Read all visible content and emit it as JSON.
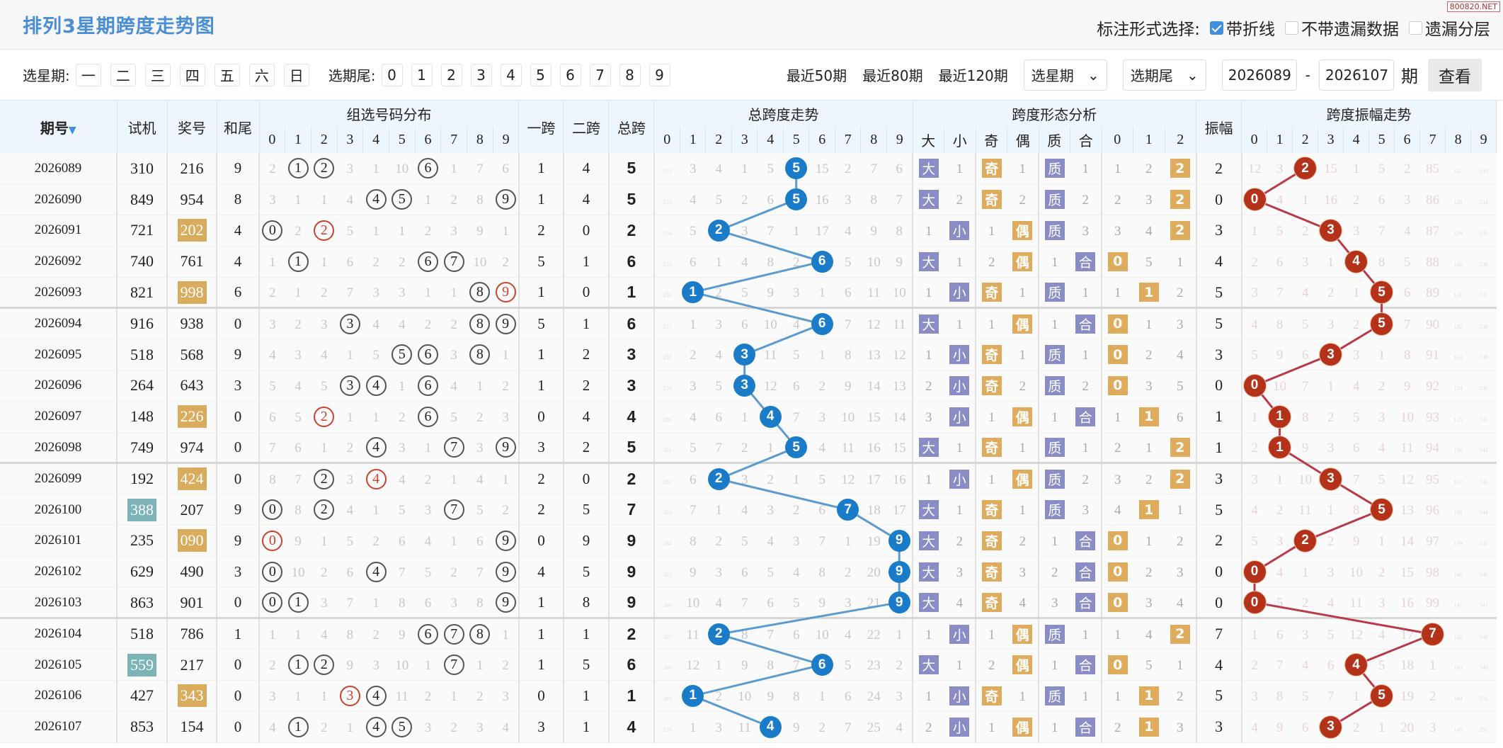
{
  "title": "排列3星期跨度走势图",
  "watermark": "800820.NET",
  "marks": {
    "label": "标注形式选择:",
    "options": [
      {
        "label": "带折线",
        "checked": true
      },
      {
        "label": "不带遗漏数据",
        "checked": false
      },
      {
        "label": "遗漏分层",
        "checked": false
      }
    ]
  },
  "filter": {
    "week_label": "选星期:",
    "weekdays": [
      "一",
      "二",
      "三",
      "四",
      "五",
      "六",
      "日"
    ],
    "tail_label": "选期尾:",
    "tails": [
      "0",
      "1",
      "2",
      "3",
      "4",
      "5",
      "6",
      "7",
      "8",
      "9"
    ],
    "recent": [
      "最近50期",
      "最近80期",
      "最近120期"
    ],
    "week_select": "选星期",
    "tail_select": "选期尾",
    "from": "2026089",
    "dash": "-",
    "to": "2026107",
    "unit": "期",
    "view": "查看"
  },
  "header": {
    "issue": "期号",
    "test": "试机",
    "prize": "奖号",
    "sum_tail": "和尾",
    "dist": "组选号码分布",
    "span1": "一跨",
    "span2": "二跨",
    "total": "总跨",
    "span_trend": "总跨度走势",
    "form": "跨度形态分析",
    "amp": "振幅",
    "amp_trend": "跨度振幅走势",
    "digits": [
      "0",
      "1",
      "2",
      "3",
      "4",
      "5",
      "6",
      "7",
      "8",
      "9"
    ],
    "form_cols": [
      "大",
      "小",
      "奇",
      "偶",
      "质",
      "合",
      "0",
      "1",
      "2"
    ]
  },
  "colors": {
    "span_ball": "#1a7cc8",
    "amp_ball": "#b4311a",
    "group3": "#d9ab5d",
    "test_hl": "#7bb3b6",
    "tag_purple": "#8a8cc6",
    "tag_orange": "#dfab5c"
  },
  "rows": [
    {
      "issue": "2026089",
      "test": "310",
      "prize": "216",
      "sum_tail": "9",
      "dist": [
        2,
        1,
        2,
        3,
        1,
        10,
        6,
        1,
        7,
        6
      ],
      "hits": [
        1,
        2,
        6
      ],
      "span1": 1,
      "span2": 4,
      "total": 5,
      "trend": [
        252,
        3,
        4,
        1,
        5,
        5,
        15,
        2,
        7,
        6
      ],
      "form": [
        "大",
        "1",
        "奇",
        "1",
        "质",
        "1",
        "1",
        "2",
        "2"
      ],
      "form_hl": [
        0,
        2,
        4,
        8
      ],
      "amp": 2,
      "amp_trend": [
        12,
        3,
        2,
        15,
        1,
        5,
        2,
        85,
        127,
        533
      ]
    },
    {
      "issue": "2026090",
      "test": "849",
      "prize": "954",
      "sum_tail": "8",
      "dist": [
        3,
        1,
        1,
        4,
        4,
        5,
        1,
        2,
        8,
        9
      ],
      "hits": [
        4,
        5,
        9
      ],
      "span1": 1,
      "span2": 4,
      "total": 5,
      "trend": [
        253,
        4,
        5,
        2,
        6,
        5,
        16,
        3,
        8,
        7
      ],
      "form": [
        "大",
        "2",
        "奇",
        "2",
        "质",
        "2",
        "2",
        "3",
        "2"
      ],
      "form_hl": [
        0,
        2,
        4,
        8
      ],
      "amp": 0,
      "amp_trend": [
        0,
        4,
        1,
        16,
        2,
        6,
        3,
        86,
        128,
        534
      ]
    },
    {
      "issue": "2026091",
      "test": "721",
      "prize": "202",
      "prize_hl": true,
      "sum_tail": "4",
      "dist": [
        0,
        2,
        2,
        5,
        1,
        1,
        2,
        3,
        9,
        1
      ],
      "hits": [
        0,
        2
      ],
      "double": 2,
      "span1": 2,
      "span2": 0,
      "total": 2,
      "trend": [
        254,
        5,
        2,
        3,
        7,
        1,
        17,
        4,
        9,
        8
      ],
      "form": [
        "1",
        "小",
        "1",
        "偶",
        "质",
        "3",
        "3",
        "4",
        "2"
      ],
      "form_hl": [
        1,
        3,
        4,
        8
      ],
      "amp": 3,
      "amp_trend": [
        1,
        5,
        2,
        3,
        3,
        7,
        4,
        87,
        129,
        535
      ]
    },
    {
      "issue": "2026092",
      "test": "740",
      "prize": "761",
      "sum_tail": "4",
      "dist": [
        1,
        1,
        1,
        6,
        2,
        2,
        6,
        7,
        10,
        2
      ],
      "hits": [
        1,
        6,
        7
      ],
      "span1": 5,
      "span2": 1,
      "total": 6,
      "trend": [
        255,
        6,
        1,
        4,
        8,
        2,
        6,
        5,
        10,
        9
      ],
      "form": [
        "大",
        "1",
        "2",
        "偶",
        "1",
        "合",
        "0",
        "5",
        "1"
      ],
      "form_hl": [
        0,
        3,
        5,
        6
      ],
      "amp": 4,
      "amp_trend": [
        2,
        6,
        3,
        1,
        4,
        8,
        5,
        88,
        130,
        536
      ]
    },
    {
      "issue": "2026093",
      "test": "821",
      "prize": "998",
      "prize_hl": true,
      "sum_tail": "6",
      "dist": [
        2,
        1,
        2,
        7,
        3,
        3,
        1,
        1,
        8,
        9
      ],
      "hits": [
        8,
        9
      ],
      "double": 9,
      "span1": 1,
      "span2": 0,
      "total": 1,
      "trend": [
        256,
        1,
        2,
        5,
        9,
        3,
        1,
        6,
        11,
        10
      ],
      "form": [
        "1",
        "小",
        "奇",
        "1",
        "质",
        "1",
        "1",
        "1",
        "2"
      ],
      "form_hl": [
        1,
        2,
        4,
        7
      ],
      "amp": 5,
      "amp_trend": [
        3,
        7,
        4,
        2,
        1,
        5,
        6,
        89,
        131,
        537
      ]
    },
    {
      "issue": "2026094",
      "test": "916",
      "prize": "938",
      "sum_tail": "0",
      "dist": [
        3,
        2,
        3,
        3,
        4,
        4,
        2,
        2,
        8,
        9
      ],
      "hits": [
        3,
        8,
        9
      ],
      "span1": 5,
      "span2": 1,
      "total": 6,
      "trend": [
        257,
        1,
        3,
        6,
        10,
        4,
        6,
        7,
        12,
        11
      ],
      "form": [
        "大",
        "1",
        "1",
        "偶",
        "1",
        "合",
        "0",
        "1",
        "3"
      ],
      "form_hl": [
        0,
        3,
        5,
        6
      ],
      "amp": 5,
      "amp_trend": [
        4,
        8,
        5,
        3,
        2,
        5,
        7,
        90,
        132,
        538
      ]
    },
    {
      "issue": "2026095",
      "test": "518",
      "prize": "568",
      "sum_tail": "9",
      "dist": [
        4,
        3,
        4,
        1,
        5,
        5,
        6,
        3,
        8,
        1
      ],
      "hits": [
        5,
        6,
        8
      ],
      "span1": 1,
      "span2": 2,
      "total": 3,
      "trend": [
        258,
        2,
        4,
        3,
        11,
        5,
        1,
        8,
        13,
        12
      ],
      "form": [
        "1",
        "小",
        "奇",
        "1",
        "质",
        "1",
        "0",
        "2",
        "4"
      ],
      "form_hl": [
        1,
        2,
        4,
        6
      ],
      "amp": 3,
      "amp_trend": [
        5,
        9,
        6,
        3,
        3,
        1,
        8,
        91,
        133,
        539
      ]
    },
    {
      "issue": "2026096",
      "test": "264",
      "prize": "643",
      "sum_tail": "3",
      "dist": [
        5,
        4,
        5,
        3,
        4,
        1,
        6,
        4,
        1,
        2
      ],
      "hits": [
        3,
        4,
        6
      ],
      "span1": 1,
      "span2": 2,
      "total": 3,
      "trend": [
        259,
        3,
        5,
        3,
        12,
        6,
        2,
        9,
        14,
        13
      ],
      "form": [
        "2",
        "小",
        "奇",
        "2",
        "质",
        "2",
        "0",
        "3",
        "5"
      ],
      "form_hl": [
        1,
        2,
        4,
        6
      ],
      "amp": 0,
      "amp_trend": [
        0,
        10,
        7,
        1,
        4,
        2,
        9,
        92,
        134,
        540
      ]
    },
    {
      "issue": "2026097",
      "test": "148",
      "prize": "226",
      "prize_hl": true,
      "sum_tail": "0",
      "dist": [
        6,
        5,
        2,
        1,
        1,
        2,
        6,
        5,
        2,
        3
      ],
      "hits": [
        2,
        6
      ],
      "double": 2,
      "span1": 0,
      "span2": 4,
      "total": 4,
      "trend": [
        260,
        4,
        6,
        1,
        4,
        7,
        3,
        10,
        15,
        14
      ],
      "form": [
        "3",
        "小",
        "1",
        "偶",
        "1",
        "合",
        "1",
        "1",
        "6"
      ],
      "form_hl": [
        1,
        3,
        5,
        7
      ],
      "amp": 1,
      "amp_trend": [
        1,
        1,
        8,
        2,
        5,
        3,
        10,
        93,
        135,
        541
      ]
    },
    {
      "issue": "2026098",
      "test": "749",
      "prize": "974",
      "sum_tail": "0",
      "dist": [
        7,
        6,
        1,
        2,
        4,
        3,
        1,
        7,
        3,
        9
      ],
      "hits": [
        4,
        7,
        9
      ],
      "span1": 3,
      "span2": 2,
      "total": 5,
      "trend": [
        261,
        5,
        7,
        2,
        1,
        5,
        4,
        11,
        16,
        15
      ],
      "form": [
        "大",
        "1",
        "奇",
        "1",
        "质",
        "1",
        "2",
        "1",
        "2"
      ],
      "form_hl": [
        0,
        2,
        4,
        8
      ],
      "amp": 1,
      "amp_trend": [
        2,
        1,
        9,
        3,
        6,
        4,
        11,
        94,
        136,
        542
      ]
    },
    {
      "issue": "2026099",
      "test": "192",
      "prize": "424",
      "prize_hl": true,
      "sum_tail": "0",
      "dist": [
        8,
        7,
        2,
        3,
        4,
        4,
        2,
        1,
        4,
        1
      ],
      "hits": [
        2,
        4
      ],
      "double": 4,
      "span1": 2,
      "span2": 0,
      "total": 2,
      "trend": [
        262,
        6,
        2,
        3,
        2,
        1,
        5,
        12,
        17,
        16
      ],
      "form": [
        "1",
        "小",
        "1",
        "偶",
        "质",
        "2",
        "3",
        "2",
        "2"
      ],
      "form_hl": [
        1,
        3,
        4,
        8
      ],
      "amp": 3,
      "amp_trend": [
        3,
        1,
        10,
        3,
        7,
        5,
        12,
        95,
        137,
        543
      ]
    },
    {
      "issue": "2026100",
      "test": "388",
      "test_hl": true,
      "prize": "207",
      "sum_tail": "9",
      "dist": [
        0,
        8,
        2,
        4,
        1,
        5,
        3,
        7,
        5,
        2
      ],
      "hits": [
        0,
        2,
        7
      ],
      "span1": 2,
      "span2": 5,
      "total": 7,
      "trend": [
        263,
        7,
        1,
        4,
        3,
        2,
        6,
        7,
        18,
        17
      ],
      "form": [
        "大",
        "1",
        "奇",
        "1",
        "质",
        "3",
        "4",
        "1",
        "1"
      ],
      "form_hl": [
        0,
        2,
        4,
        7
      ],
      "amp": 5,
      "amp_trend": [
        4,
        2,
        11,
        1,
        8,
        5,
        13,
        96,
        138,
        544
      ]
    },
    {
      "issue": "2026101",
      "test": "235",
      "prize": "090",
      "prize_hl": true,
      "sum_tail": "9",
      "dist": [
        0,
        9,
        1,
        5,
        2,
        6,
        4,
        1,
        6,
        9
      ],
      "hits": [
        0,
        9
      ],
      "double": 0,
      "span1": 0,
      "span2": 9,
      "total": 9,
      "trend": [
        264,
        8,
        2,
        5,
        4,
        3,
        7,
        1,
        19,
        9
      ],
      "form": [
        "大",
        "2",
        "奇",
        "2",
        "1",
        "合",
        "0",
        "1",
        "2"
      ],
      "form_hl": [
        0,
        2,
        5,
        6
      ],
      "amp": 2,
      "amp_trend": [
        5,
        3,
        2,
        2,
        9,
        1,
        14,
        97,
        139,
        545
      ]
    },
    {
      "issue": "2026102",
      "test": "629",
      "prize": "490",
      "sum_tail": "3",
      "dist": [
        0,
        10,
        2,
        6,
        4,
        7,
        5,
        2,
        7,
        9
      ],
      "hits": [
        0,
        4,
        9
      ],
      "span1": 4,
      "span2": 5,
      "total": 9,
      "trend": [
        265,
        9,
        3,
        6,
        5,
        4,
        8,
        2,
        20,
        9
      ],
      "form": [
        "大",
        "3",
        "奇",
        "3",
        "2",
        "合",
        "0",
        "2",
        "3"
      ],
      "form_hl": [
        0,
        2,
        5,
        6
      ],
      "amp": 0,
      "amp_trend": [
        0,
        4,
        1,
        3,
        10,
        2,
        15,
        98,
        140,
        546
      ]
    },
    {
      "issue": "2026103",
      "test": "863",
      "prize": "901",
      "sum_tail": "0",
      "dist": [
        0,
        1,
        3,
        7,
        1,
        8,
        6,
        3,
        8,
        9
      ],
      "hits": [
        0,
        1,
        9
      ],
      "span1": 1,
      "span2": 8,
      "total": 9,
      "trend": [
        266,
        10,
        4,
        7,
        6,
        5,
        9,
        3,
        21,
        9
      ],
      "form": [
        "大",
        "4",
        "奇",
        "4",
        "3",
        "合",
        "0",
        "3",
        "4"
      ],
      "form_hl": [
        0,
        2,
        5,
        6
      ],
      "amp": 0,
      "amp_trend": [
        0,
        5,
        2,
        4,
        11,
        3,
        16,
        99,
        141,
        547
      ]
    },
    {
      "issue": "2026104",
      "test": "518",
      "prize": "786",
      "sum_tail": "1",
      "dist": [
        1,
        1,
        4,
        8,
        2,
        9,
        6,
        7,
        8,
        1
      ],
      "hits": [
        6,
        7,
        8
      ],
      "span1": 1,
      "span2": 1,
      "total": 2,
      "trend": [
        267,
        11,
        2,
        8,
        7,
        6,
        10,
        4,
        22,
        1
      ],
      "form": [
        "1",
        "小",
        "1",
        "偶",
        "质",
        "1",
        "1",
        "4",
        "2"
      ],
      "form_hl": [
        1,
        3,
        4,
        8
      ],
      "amp": 7,
      "amp_trend": [
        1,
        6,
        3,
        5,
        12,
        4,
        17,
        7,
        142,
        548
      ]
    },
    {
      "issue": "2026105",
      "test": "559",
      "test_hl": true,
      "prize": "217",
      "sum_tail": "0",
      "dist": [
        2,
        1,
        2,
        9,
        3,
        10,
        1,
        7,
        1,
        2
      ],
      "hits": [
        1,
        2,
        7
      ],
      "span1": 1,
      "span2": 5,
      "total": 6,
      "trend": [
        268,
        12,
        1,
        9,
        8,
        7,
        6,
        5,
        23,
        2
      ],
      "form": [
        "大",
        "1",
        "2",
        "偶",
        "1",
        "合",
        "0",
        "5",
        "1"
      ],
      "form_hl": [
        0,
        3,
        5,
        6
      ],
      "amp": 4,
      "amp_trend": [
        2,
        7,
        4,
        6,
        4,
        5,
        18,
        1,
        143,
        549
      ]
    },
    {
      "issue": "2026106",
      "test": "427",
      "prize": "343",
      "prize_hl": true,
      "sum_tail": "0",
      "dist": [
        3,
        1,
        1,
        3,
        4,
        11,
        2,
        1,
        2,
        3
      ],
      "hits": [
        3,
        4
      ],
      "double": 3,
      "span1": 0,
      "span2": 1,
      "total": 1,
      "trend": [
        269,
        1,
        2,
        10,
        9,
        8,
        1,
        6,
        24,
        3
      ],
      "form": [
        "1",
        "小",
        "奇",
        "1",
        "质",
        "1",
        "1",
        "1",
        "2"
      ],
      "form_hl": [
        1,
        2,
        4,
        7
      ],
      "amp": 5,
      "amp_trend": [
        3,
        8,
        5,
        7,
        1,
        5,
        19,
        2,
        144,
        550
      ]
    },
    {
      "issue": "2026107",
      "test": "853",
      "prize": "154",
      "sum_tail": "0",
      "dist": [
        4,
        1,
        2,
        1,
        4,
        5,
        3,
        2,
        3,
        4
      ],
      "hits": [
        1,
        4,
        5
      ],
      "span1": 3,
      "span2": 1,
      "total": 4,
      "trend": [
        270,
        1,
        3,
        11,
        4,
        9,
        2,
        7,
        25,
        4
      ],
      "form": [
        "2",
        "小",
        "1",
        "偶",
        "1",
        "合",
        "2",
        "1",
        "3"
      ],
      "form_hl": [
        1,
        3,
        5,
        7
      ],
      "amp": 3,
      "amp_trend": [
        4,
        9,
        6,
        3,
        2,
        1,
        20,
        3,
        145,
        551
      ]
    }
  ]
}
